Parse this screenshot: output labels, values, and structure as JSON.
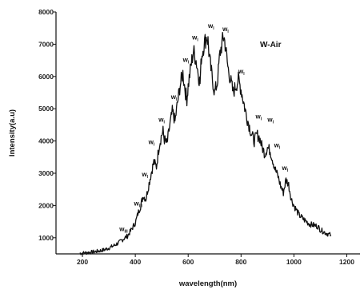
{
  "chart_data": {
    "type": "line",
    "xlabel": "wavelength(nm)",
    "ylabel": "Intensity(a.u)",
    "xlim": [
      100,
      1250
    ],
    "ylim": [
      500,
      8000
    ],
    "x_ticks": [
      200,
      400,
      600,
      800,
      1000,
      1200
    ],
    "y_ticks": [
      1000,
      2000,
      3000,
      4000,
      5000,
      6000,
      7000,
      8000
    ],
    "grid": false,
    "legend_placement": "top-right",
    "series": [
      {
        "name": "W-Air",
        "x": [
          190,
          220,
          250,
          280,
          300,
          320,
          340,
          360,
          370,
          380,
          390,
          400,
          410,
          420,
          425,
          430,
          440,
          450,
          460,
          470,
          480,
          490,
          500,
          505,
          510,
          520,
          530,
          540,
          545,
          550,
          560,
          570,
          580,
          590,
          595,
          600,
          610,
          620,
          630,
          640,
          645,
          650,
          660,
          670,
          675,
          680,
          690,
          700,
          710,
          720,
          730,
          735,
          740,
          750,
          760,
          770,
          780,
          790,
          800,
          810,
          820,
          830,
          840,
          850,
          860,
          870,
          880,
          890,
          900,
          910,
          920,
          930,
          940,
          950,
          960,
          970,
          980,
          990,
          1000,
          1010,
          1020,
          1040,
          1060,
          1080,
          1090,
          1100,
          1120,
          1140
        ],
        "y": [
          520,
          540,
          570,
          620,
          680,
          760,
          860,
          1000,
          1050,
          1180,
          1320,
          1460,
          1750,
          1980,
          2150,
          2300,
          2200,
          2600,
          3000,
          3350,
          3200,
          3850,
          4200,
          4300,
          4050,
          3900,
          4450,
          4900,
          4800,
          4600,
          5200,
          5750,
          6100,
          5500,
          5300,
          5700,
          6300,
          6800,
          6500,
          6000,
          5800,
          6600,
          7000,
          7250,
          7100,
          6600,
          6000,
          5500,
          5800,
          6700,
          7100,
          7250,
          7000,
          6300,
          5900,
          5500,
          5700,
          5900,
          5600,
          5200,
          4800,
          4500,
          4200,
          4000,
          4200,
          4100,
          3800,
          3600,
          3800,
          3700,
          3400,
          3100,
          2900,
          2600,
          2400,
          2800,
          2650,
          2200,
          2000,
          1850,
          1700,
          1550,
          1420,
          1380,
          1350,
          1250,
          1150,
          1080
        ]
      }
    ],
    "annotations": [
      {
        "text": "w",
        "sub": "III",
        "x": 340,
        "y": 1200
      },
      {
        "text": "w",
        "sub": "III",
        "x": 395,
        "y": 2000
      },
      {
        "text": "w",
        "sub": "I",
        "x": 425,
        "y": 2900
      },
      {
        "text": "w",
        "sub": "I",
        "x": 450,
        "y": 3900
      },
      {
        "text": "w",
        "sub": "I",
        "x": 488,
        "y": 4600
      },
      {
        "text": "w",
        "sub": "I",
        "x": 535,
        "y": 5300
      },
      {
        "text": "w",
        "sub": "I",
        "x": 580,
        "y": 6450
      },
      {
        "text": "w",
        "sub": "I",
        "x": 615,
        "y": 7150
      },
      {
        "text": "w",
        "sub": "I",
        "x": 675,
        "y": 7500
      },
      {
        "text": "w",
        "sub": "I",
        "x": 730,
        "y": 7400
      },
      {
        "text": "w",
        "sub": "I",
        "x": 790,
        "y": 6100
      },
      {
        "text": "w",
        "sub": "I",
        "x": 855,
        "y": 4700
      },
      {
        "text": "w",
        "sub": "I",
        "x": 900,
        "y": 4600
      },
      {
        "text": "w",
        "sub": "I",
        "x": 925,
        "y": 3800
      },
      {
        "text": "w",
        "sub": "I",
        "x": 955,
        "y": 3100
      }
    ]
  }
}
